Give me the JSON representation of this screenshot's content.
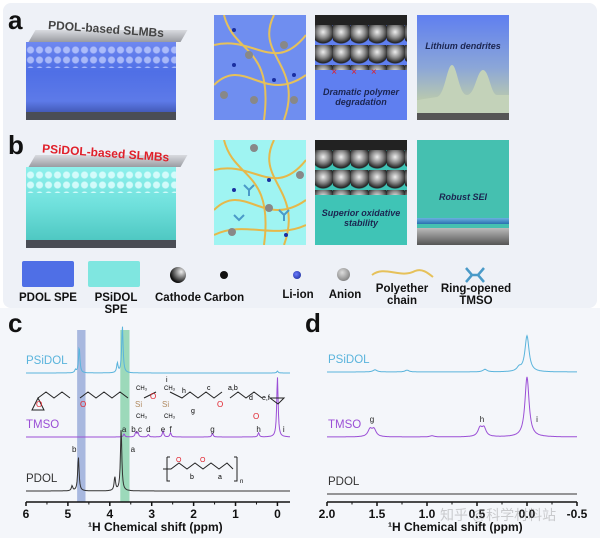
{
  "panel_a": {
    "label": "a",
    "title": "PDOL-based SLMBs",
    "texts": [
      "Dramatic polymer degradation",
      "Lithium dendrites"
    ]
  },
  "panel_b": {
    "label": "b",
    "title": "PSiDOL-based SLMBs",
    "texts": [
      "Superior oxidative stability",
      "Robust SEI"
    ]
  },
  "legend": [
    "PDOL SPE",
    "PSiDOL SPE",
    "Cathode",
    "Carbon",
    "Li-ion",
    "Anion",
    "Polyether chain",
    "Ring-opened TMSO"
  ],
  "colors": {
    "pdol_spe": "#5a78e8",
    "psidol_spe": "#7fe6e0",
    "psidol_trace": "#5ab4dc",
    "tmso_trace": "#9b4fd6",
    "pdol_trace": "#333333",
    "highlight_blue": "#8fa3d6",
    "highlight_green": "#7fcfa4",
    "title_b": "#e0202a"
  },
  "structure": {
    "o": "O",
    "si": "Si",
    "ch3": "CH₃",
    "letters": {
      "h": "h",
      "c": "c",
      "ab": "a,b",
      "d": "d",
      "ef": "e,f",
      "g": "g",
      "i": "i"
    }
  },
  "pdol_structure": {
    "o": "O",
    "b": "b",
    "a": "a",
    "n": "n"
  },
  "watermark": "知乎 @科学材料站",
  "chart_data": [
    {
      "type": "line",
      "panel": "c",
      "xlabel": "¹H Chemical shift (ppm)",
      "xlim": [
        6,
        -0.3
      ],
      "reversed": true,
      "ticks": [
        6,
        5,
        4,
        3,
        2,
        1,
        0
      ],
      "highlights": [
        {
          "from": 4.78,
          "to": 4.58,
          "color": "blue"
        },
        {
          "from": 3.75,
          "to": 3.53,
          "color": "green"
        }
      ],
      "series": [
        {
          "name": "PSiDOL",
          "peaks": [
            [
              4.82,
              0.06
            ],
            [
              4.73,
              0.55
            ],
            [
              3.82,
              0.2
            ],
            [
              3.7,
              1.0
            ],
            [
              0.0,
              0.04
            ]
          ]
        },
        {
          "name": "TMSO",
          "peaks": [
            [
              3.66,
              0.05
            ],
            [
              3.38,
              0.08
            ],
            [
              3.33,
              0.07
            ],
            [
              3.08,
              0.04
            ],
            [
              2.73,
              0.1
            ],
            [
              2.55,
              0.07
            ],
            [
              1.55,
              0.06
            ],
            [
              0.45,
              0.07
            ],
            [
              0.0,
              1.0
            ]
          ],
          "labels": [
            [
              "a",
              3.66
            ],
            [
              "b,c",
              3.36
            ],
            [
              "d",
              3.08
            ],
            [
              "e",
              2.73
            ],
            [
              "f",
              2.55
            ],
            [
              "g",
              1.55
            ],
            [
              "h",
              0.45
            ],
            [
              "i",
              -0.15
            ]
          ]
        },
        {
          "name": "PDOL",
          "peaks": [
            [
              4.9,
              0.08
            ],
            [
              4.75,
              0.55
            ],
            [
              3.88,
              0.22
            ],
            [
              3.73,
              1.0
            ]
          ],
          "labels": [
            [
              "b",
              4.85
            ],
            [
              "a",
              3.45
            ]
          ]
        }
      ]
    },
    {
      "type": "line",
      "panel": "d",
      "xlabel": "¹H Chemical shift (ppm)",
      "xlim": [
        2.0,
        -0.5
      ],
      "reversed": true,
      "ticks": [
        2.0,
        1.5,
        1.0,
        0.5,
        0.0,
        -0.5
      ],
      "tick_labels": [
        "2.0",
        "1.5",
        "1.0",
        "0.5",
        "0.0",
        "-0.5"
      ],
      "series": [
        {
          "name": "PSiDOL",
          "peaks": [
            [
              1.52,
              0.06
            ],
            [
              1.2,
              0.05
            ],
            [
              0.42,
              0.07
            ],
            [
              0.08,
              0.1
            ],
            [
              0.0,
              1.0
            ]
          ]
        },
        {
          "name": "TMSO",
          "peaks": [
            [
              1.57,
              0.12
            ],
            [
              1.53,
              0.12
            ],
            [
              0.95,
              0.02
            ],
            [
              0.47,
              0.14
            ],
            [
              0.43,
              0.14
            ],
            [
              0.0,
              1.0
            ]
          ],
          "labels": [
            [
              "g",
              1.55
            ],
            [
              "h",
              0.45
            ],
            [
              "i",
              -0.1
            ]
          ]
        },
        {
          "name": "PDOL",
          "peaks": []
        }
      ]
    }
  ]
}
